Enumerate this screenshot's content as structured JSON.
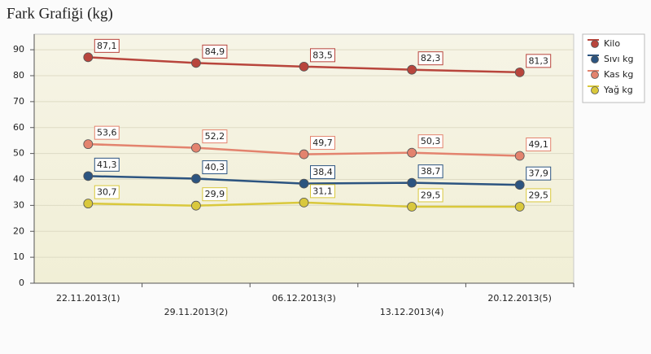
{
  "chart_data": {
    "type": "line",
    "title": "Fark Grafiği (kg)",
    "categories": [
      "22.11.2013(1)",
      "29.11.2013(2)",
      "06.12.2013(3)",
      "13.12.2013(4)",
      "20.12.2013(5)"
    ],
    "series": [
      {
        "name": "Kilo",
        "color": "#b8453c",
        "values": [
          87.1,
          84.9,
          83.5,
          82.3,
          81.3
        ],
        "value_labels": [
          "87,1",
          "84,9",
          "83,5",
          "82,3",
          "81,3"
        ]
      },
      {
        "name": "Sıvı kg",
        "color": "#2c5480",
        "values": [
          41.3,
          40.3,
          38.4,
          38.7,
          37.9
        ],
        "value_labels": [
          "41,3",
          "40,3",
          "38,4",
          "38,7",
          "37,9"
        ]
      },
      {
        "name": "Kas kg",
        "color": "#e3836e",
        "values": [
          53.6,
          52.2,
          49.7,
          50.3,
          49.1
        ],
        "value_labels": [
          "53,6",
          "52,2",
          "49,7",
          "50,3",
          "49,1"
        ]
      },
      {
        "name": "Yağ kg",
        "color": "#d9c83c",
        "values": [
          30.7,
          29.9,
          31.1,
          29.5,
          29.5
        ],
        "value_labels": [
          "30,7",
          "29,9",
          "31,1",
          "29,5",
          "29,5"
        ]
      }
    ],
    "ylim": [
      0,
      96
    ],
    "yticks": [
      0,
      10,
      20,
      30,
      40,
      50,
      60,
      70,
      80,
      90
    ],
    "grid": true,
    "legend": "right"
  }
}
